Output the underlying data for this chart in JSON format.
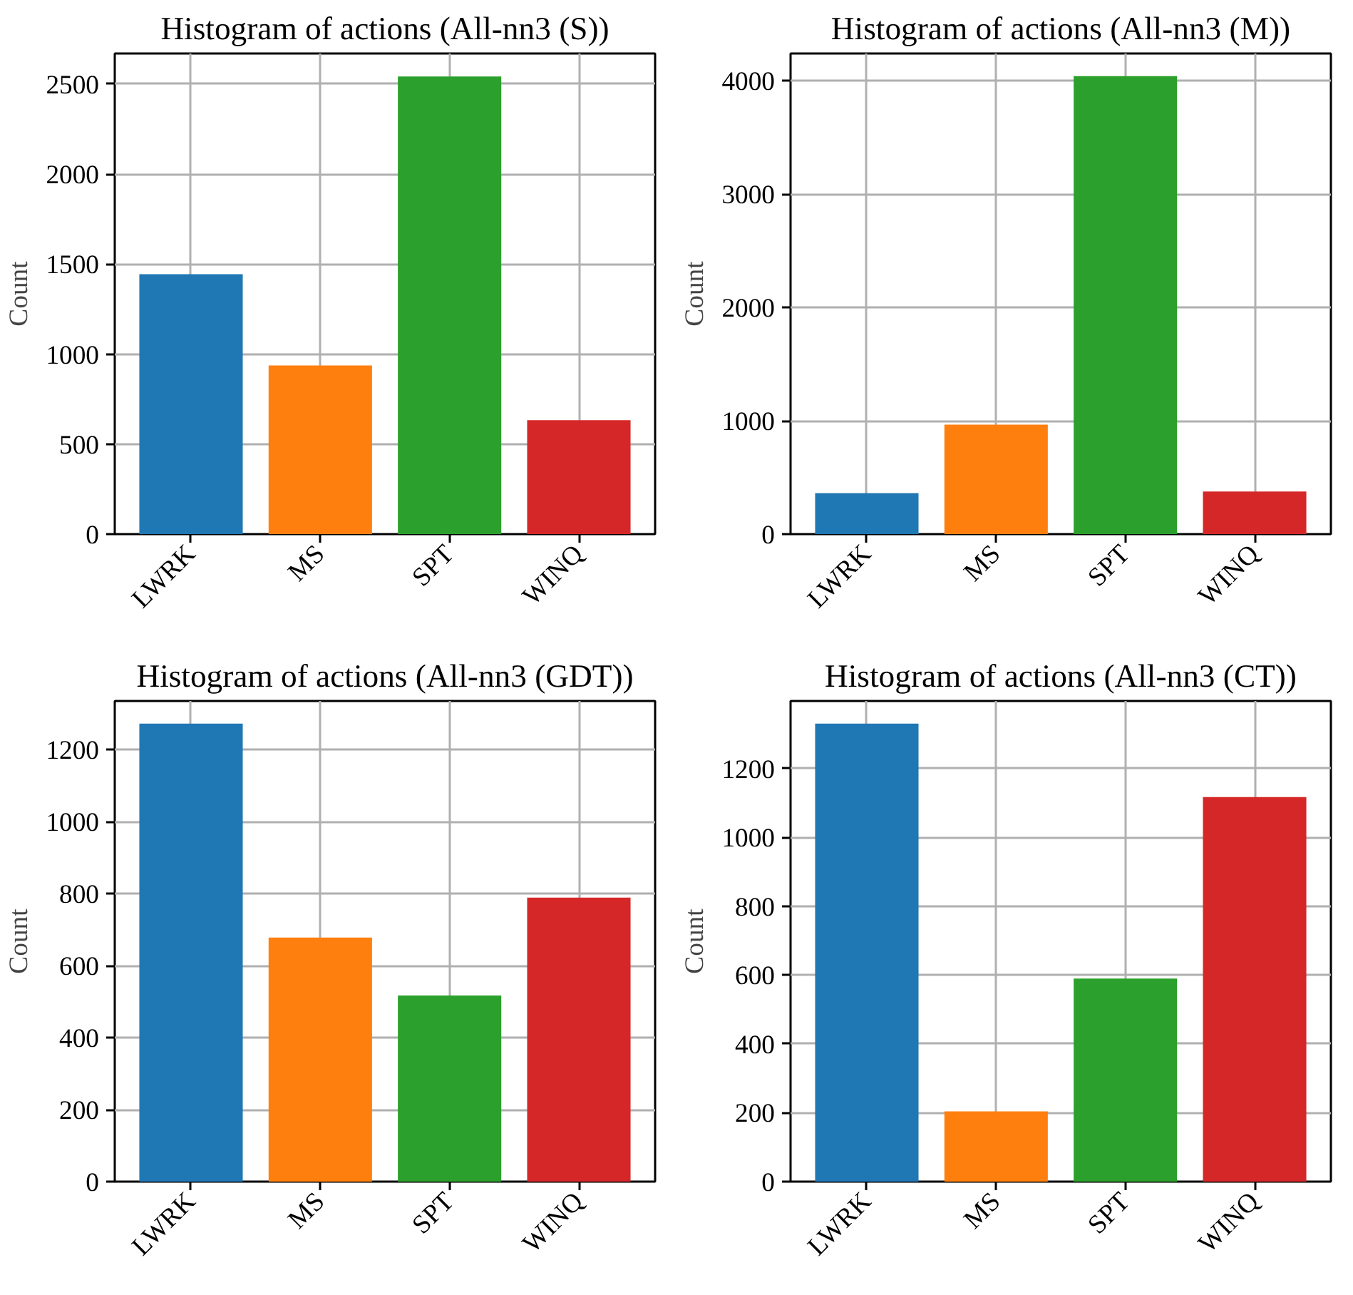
{
  "chart_data": [
    {
      "type": "bar",
      "title": "Histogram of actions (All-nn3 (S))",
      "ylabel": "Count",
      "categories": [
        "LWRK",
        "MS",
        "SPT",
        "WINQ"
      ],
      "values": [
        1444,
        937,
        2542,
        633
      ],
      "colors": [
        "#1f77b4",
        "#ff7f0e",
        "#2ca02c",
        "#d62728"
      ],
      "ylim": [
        0,
        2670
      ],
      "yticks": [
        0,
        500,
        1000,
        1500,
        2000,
        2500
      ],
      "grid": true
    },
    {
      "type": "bar",
      "title": "Histogram of actions (All-nn3 (M))",
      "ylabel": "Count",
      "categories": [
        "LWRK",
        "MS",
        "SPT",
        "WINQ"
      ],
      "values": [
        362,
        966,
        4040,
        376
      ],
      "colors": [
        "#1f77b4",
        "#ff7f0e",
        "#2ca02c",
        "#d62728"
      ],
      "ylim": [
        0,
        4240
      ],
      "yticks": [
        0,
        1000,
        2000,
        3000,
        4000
      ],
      "grid": true
    },
    {
      "type": "bar",
      "title": "Histogram of actions (All-nn3 (GDT))",
      "ylabel": "Count",
      "categories": [
        "LWRK",
        "MS",
        "SPT",
        "WINQ"
      ],
      "values": [
        1272,
        678,
        517,
        789
      ],
      "colors": [
        "#1f77b4",
        "#ff7f0e",
        "#2ca02c",
        "#d62728"
      ],
      "ylim": [
        0,
        1335
      ],
      "yticks": [
        0,
        200,
        400,
        600,
        800,
        1000,
        1200
      ],
      "grid": true
    },
    {
      "type": "bar",
      "title": "Histogram of actions (All-nn3 (CT))",
      "ylabel": "Count",
      "categories": [
        "LWRK",
        "MS",
        "SPT",
        "WINQ"
      ],
      "values": [
        1330,
        204,
        590,
        1117
      ],
      "colors": [
        "#1f77b4",
        "#ff7f0e",
        "#2ca02c",
        "#d62728"
      ],
      "ylim": [
        0,
        1396
      ],
      "yticks": [
        0,
        200,
        400,
        600,
        800,
        1000,
        1200
      ],
      "grid": true
    }
  ]
}
